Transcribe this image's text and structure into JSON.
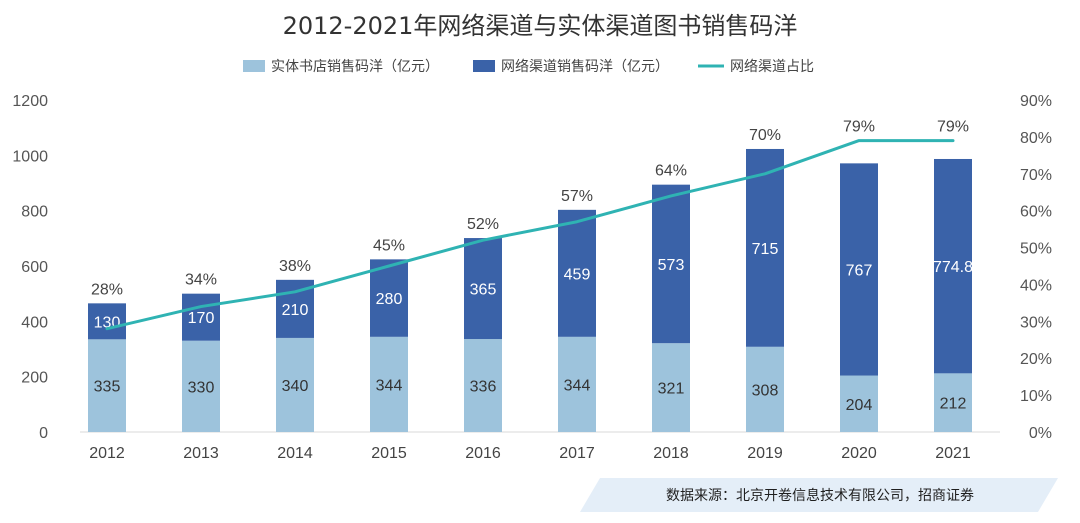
{
  "chart_data": {
    "type": "bar",
    "stacked": true,
    "title": "2012-2021年网络渠道与实体渠道图书销售码洋",
    "categories": [
      "2012",
      "2013",
      "2014",
      "2015",
      "2016",
      "2017",
      "2018",
      "2019",
      "2020",
      "2021"
    ],
    "series": [
      {
        "name": "实体书店销售码洋（亿元）",
        "axis": "left",
        "color": "#9dc3dc",
        "label_color": "#333333",
        "values": [
          335,
          330,
          340,
          344,
          336,
          344,
          321,
          308,
          204,
          212
        ],
        "value_labels": [
          "335",
          "330",
          "340",
          "344",
          "336",
          "344",
          "321",
          "308",
          "204",
          "212"
        ]
      },
      {
        "name": "网络渠道销售码洋（亿元）",
        "axis": "left",
        "color": "#3a62a8",
        "label_color": "#ffffff",
        "values": [
          130,
          170,
          210,
          280,
          365,
          459,
          573,
          715,
          767,
          774.8
        ],
        "value_labels": [
          "130",
          "170",
          "210",
          "280",
          "365",
          "459",
          "573",
          "715",
          "767",
          "774.8"
        ]
      },
      {
        "name": "网络渠道占比",
        "axis": "right",
        "type": "line",
        "color": "#2fb3b3",
        "values": [
          28,
          34,
          38,
          45,
          52,
          57,
          64,
          70,
          79,
          79
        ],
        "value_labels": [
          "28%",
          "34%",
          "38%",
          "45%",
          "52%",
          "57%",
          "64%",
          "70%",
          "79%",
          "79%"
        ]
      }
    ],
    "y_left": {
      "ylim": [
        0,
        1200
      ],
      "ticks": [
        0,
        200,
        400,
        600,
        800,
        1000,
        1200
      ],
      "tick_labels": [
        "0",
        "200",
        "400",
        "600",
        "800",
        "1000",
        "1200"
      ]
    },
    "y_right": {
      "ylim": [
        0,
        90
      ],
      "ticks": [
        0,
        10,
        20,
        30,
        40,
        50,
        60,
        70,
        80,
        90
      ],
      "tick_labels": [
        "0%",
        "10%",
        "20%",
        "30%",
        "40%",
        "50%",
        "60%",
        "70%",
        "80%",
        "90%"
      ]
    },
    "grid": false,
    "legend": "top-center",
    "source": "数据来源：北京开卷信息技术有限公司，招商证券"
  }
}
